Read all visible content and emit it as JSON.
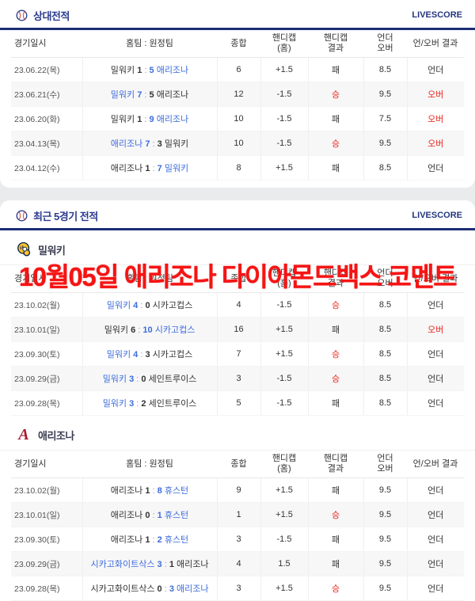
{
  "columns": [
    "경기일시",
    "홈팀 : 원정팀",
    "종합",
    "핸디캡\n(홈)",
    "핸디캡\n결과",
    "언더\n오버",
    "언/오버 결과"
  ],
  "overlay": {
    "text": "10월05일 애리조나 다이아몬드백스 코멘트"
  },
  "colors": {
    "navy": "#1c2d74",
    "title_navy": "#2b3a8d",
    "win_blue": "#3c6cdc",
    "result_red": "#e8261d",
    "overlay_red": "#f51414",
    "brewers_navy": "#0a2351",
    "brewers_yellow": "#ffc425",
    "dbacks_red": "#a71930"
  },
  "sections": {
    "h2h": {
      "title": "상대전적",
      "livescore": "LIVESCORE",
      "rows": [
        {
          "date": "23.06.22(목)",
          "home": "밀워키",
          "hs": "1",
          "as": "5",
          "away": "애리조나",
          "winner": "away",
          "total": "6",
          "hcp": "+1.5",
          "hr": "패",
          "uo": "8.5",
          "ur": "언더"
        },
        {
          "date": "23.06.21(수)",
          "home": "밀워키",
          "hs": "7",
          "as": "5",
          "away": "애리조나",
          "winner": "home",
          "total": "12",
          "hcp": "-1.5",
          "hr": "승",
          "uo": "9.5",
          "ur": "오버"
        },
        {
          "date": "23.06.20(화)",
          "home": "밀워키",
          "hs": "1",
          "as": "9",
          "away": "애리조나",
          "winner": "away",
          "total": "10",
          "hcp": "-1.5",
          "hr": "패",
          "uo": "7.5",
          "ur": "오버"
        },
        {
          "date": "23.04.13(목)",
          "home": "애리조나",
          "hs": "7",
          "as": "3",
          "away": "밀워키",
          "winner": "home",
          "total": "10",
          "hcp": "-1.5",
          "hr": "승",
          "uo": "9.5",
          "ur": "오버"
        },
        {
          "date": "23.04.12(수)",
          "home": "애리조나",
          "hs": "1",
          "as": "7",
          "away": "밀워키",
          "winner": "away",
          "total": "8",
          "hcp": "+1.5",
          "hr": "패",
          "uo": "8.5",
          "ur": "언더"
        }
      ]
    },
    "recent": {
      "title": "최근 5경기 전적",
      "livescore": "LIVESCORE",
      "teams": [
        {
          "name": "밀워키",
          "logo": "brewers-glove-logo",
          "rows": [
            {
              "date": "23.10.02(월)",
              "home": "밀워키",
              "hs": "4",
              "as": "0",
              "away": "시카고컵스",
              "winner": "home",
              "total": "4",
              "hcp": "-1.5",
              "hr": "승",
              "uo": "8.5",
              "ur": "언더"
            },
            {
              "date": "23.10.01(일)",
              "home": "밀워키",
              "hs": "6",
              "as": "10",
              "away": "시카고컵스",
              "winner": "away",
              "total": "16",
              "hcp": "+1.5",
              "hr": "패",
              "uo": "8.5",
              "ur": "오버"
            },
            {
              "date": "23.09.30(토)",
              "home": "밀워키",
              "hs": "4",
              "as": "3",
              "away": "시카고컵스",
              "winner": "home",
              "total": "7",
              "hcp": "+1.5",
              "hr": "승",
              "uo": "8.5",
              "ur": "언더"
            },
            {
              "date": "23.09.29(금)",
              "home": "밀워키",
              "hs": "3",
              "as": "0",
              "away": "세인트루이스",
              "winner": "home",
              "total": "3",
              "hcp": "-1.5",
              "hr": "승",
              "uo": "8.5",
              "ur": "언더"
            },
            {
              "date": "23.09.28(목)",
              "home": "밀워키",
              "hs": "3",
              "as": "2",
              "away": "세인트루이스",
              "winner": "home",
              "total": "5",
              "hcp": "-1.5",
              "hr": "패",
              "uo": "8.5",
              "ur": "언더"
            }
          ]
        },
        {
          "name": "애리조나",
          "logo": "diamondbacks-a-logo",
          "rows": [
            {
              "date": "23.10.02(월)",
              "home": "애리조나",
              "hs": "1",
              "as": "8",
              "away": "휴스턴",
              "winner": "away",
              "total": "9",
              "hcp": "+1.5",
              "hr": "패",
              "uo": "9.5",
              "ur": "언더"
            },
            {
              "date": "23.10.01(일)",
              "home": "애리조나",
              "hs": "0",
              "as": "1",
              "away": "휴스턴",
              "winner": "away",
              "total": "1",
              "hcp": "+1.5",
              "hr": "승",
              "uo": "9.5",
              "ur": "언더"
            },
            {
              "date": "23.09.30(토)",
              "home": "애리조나",
              "hs": "1",
              "as": "2",
              "away": "휴스턴",
              "winner": "away",
              "total": "3",
              "hcp": "-1.5",
              "hr": "패",
              "uo": "9.5",
              "ur": "언더"
            },
            {
              "date": "23.09.29(금)",
              "home": "시카고화이트삭스",
              "hs": "3",
              "as": "1",
              "away": "애리조나",
              "winner": "home",
              "total": "4",
              "hcp": "1.5",
              "hr": "패",
              "uo": "9.5",
              "ur": "언더"
            },
            {
              "date": "23.09.28(목)",
              "home": "시카고화이트삭스",
              "hs": "0",
              "as": "3",
              "away": "애리조나",
              "winner": "away",
              "total": "3",
              "hcp": "+1.5",
              "hr": "승",
              "uo": "9.5",
              "ur": "언더"
            }
          ]
        }
      ]
    }
  }
}
